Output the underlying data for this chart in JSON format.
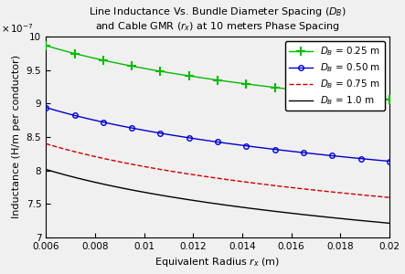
{
  "title": "Line Inductance Vs. Bundle Diameter Spacing ($D_B$)\nand Cable GMR ($r_x$) at 10 meters Phase Spacing",
  "xlabel": "Equivalent Radius $r_x$ (m)",
  "ylabel": "Inductance (H/m per conductor)",
  "xmin": 0.006,
  "xmax": 0.02,
  "ymin": 7e-07,
  "ymax": 1e-06,
  "D_eq": 10.0,
  "bundle_diameters": [
    0.25,
    0.5,
    0.75,
    1.0
  ],
  "legend_labels": [
    "$D_B$ = 0.25 m",
    "$D_B$ = 0.50 m",
    "$D_B$ = 0.75 m",
    "$D_B$ = 1.0 m"
  ],
  "colors": [
    "#00bb00",
    "#0000cc",
    "#cc0000",
    "#000000"
  ],
  "linestyles": [
    "-",
    "-",
    "--",
    "-"
  ],
  "markers": [
    "+",
    "o",
    "",
    ""
  ],
  "marker_sizes": [
    7,
    4,
    0,
    0
  ],
  "marker_mew": [
    1.5,
    1.0,
    0,
    0
  ],
  "linewidths": [
    1.0,
    1.0,
    1.0,
    1.0
  ],
  "n_marker_points": 13,
  "background_color": "#f0f0f0",
  "ytick_scale": 1e-07,
  "yticks": [
    7.0,
    7.5,
    8.0,
    8.5,
    9.0,
    9.5,
    10.0
  ],
  "xticks": [
    0.006,
    0.008,
    0.01,
    0.012,
    0.014,
    0.016,
    0.018,
    0.02
  ],
  "title_fontsize": 8.0,
  "label_fontsize": 8.0,
  "tick_fontsize": 7.5,
  "legend_fontsize": 7.5
}
